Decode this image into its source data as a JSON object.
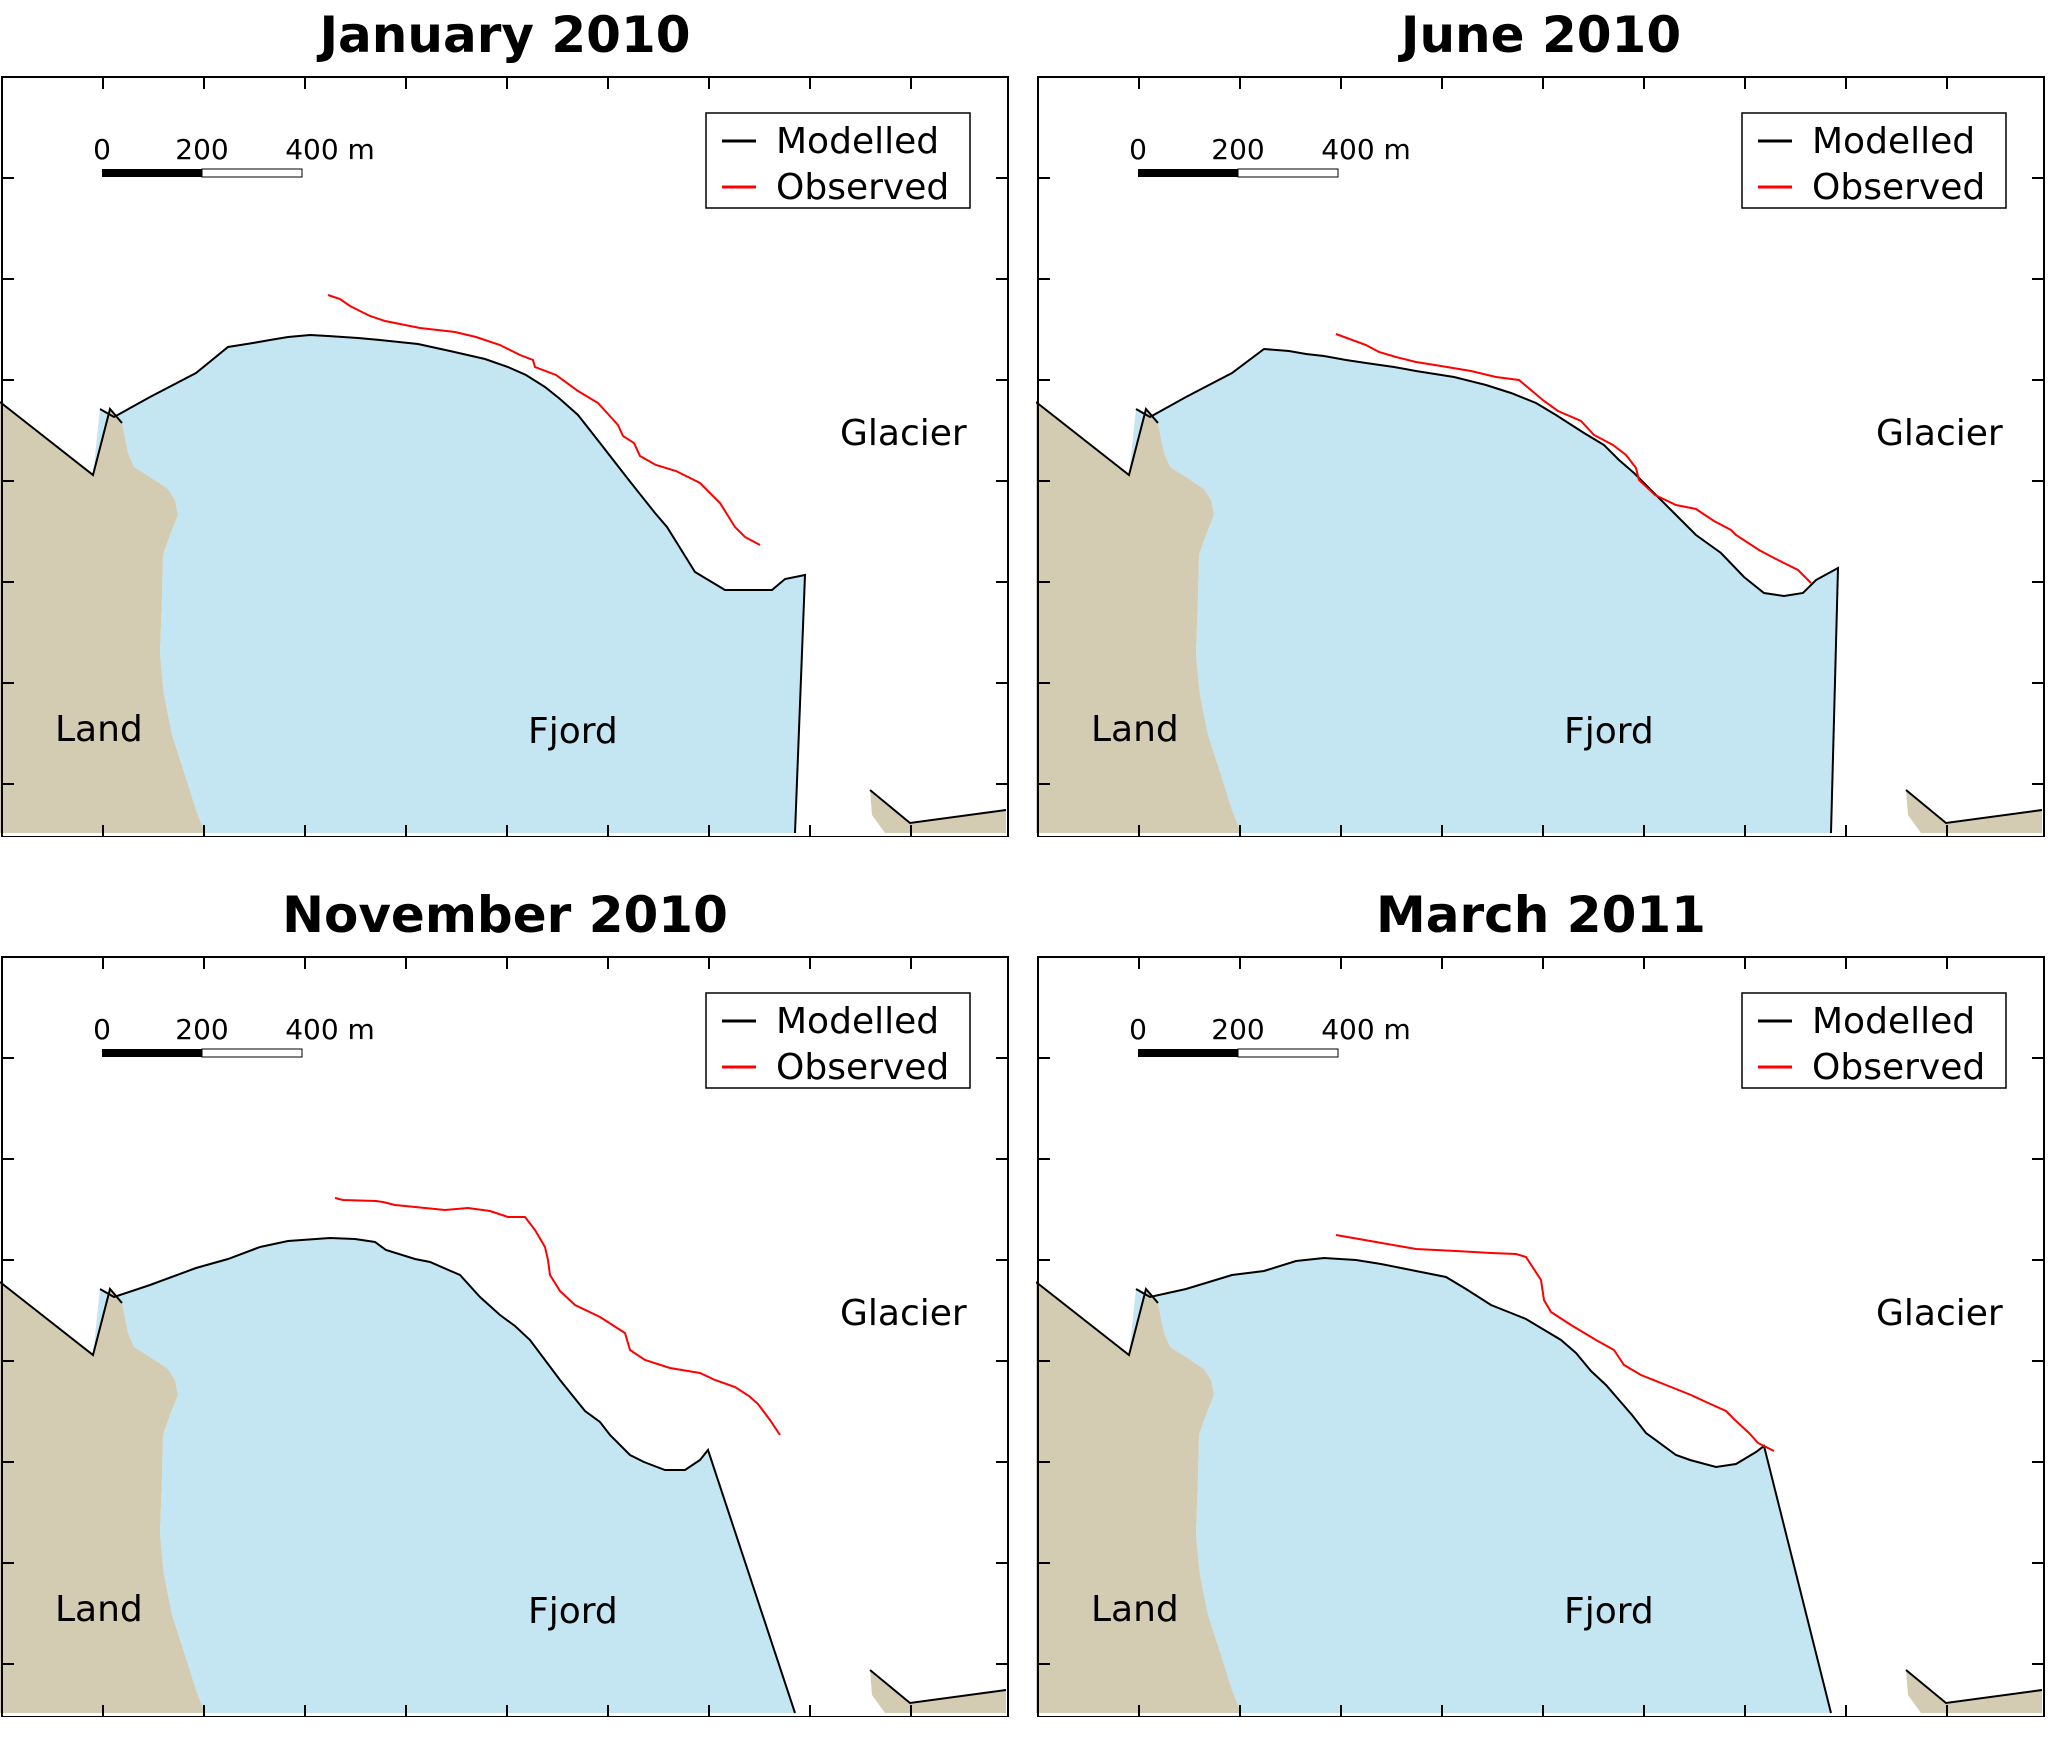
{
  "colors": {
    "land": "#d3ccb3",
    "fjord": "#c3e6f2",
    "modelled": "#000000",
    "observed": "#ff0000",
    "frame": "#000000"
  },
  "legend": {
    "modelled": "Modelled",
    "observed": "Observed"
  },
  "scalebar": {
    "tick0": "0",
    "tick1": "200",
    "tick2": "400 m"
  },
  "labels": {
    "land": "Land",
    "fjord": "Fjord",
    "glacier": "Glacier"
  },
  "panels": [
    {
      "title": "January 2010",
      "modelled": [
        [
          100,
          334
        ],
        [
          114,
          342
        ],
        [
          150,
          322
        ],
        [
          196,
          298
        ],
        [
          228,
          272
        ],
        [
          253,
          268
        ],
        [
          270,
          265
        ],
        [
          288,
          262
        ],
        [
          310,
          260
        ],
        [
          328,
          261
        ],
        [
          358,
          263
        ],
        [
          380,
          265
        ],
        [
          418,
          269
        ],
        [
          450,
          276
        ],
        [
          485,
          284
        ],
        [
          508,
          292
        ],
        [
          526,
          300
        ],
        [
          545,
          312
        ],
        [
          560,
          324
        ],
        [
          578,
          340
        ],
        [
          600,
          368
        ],
        [
          628,
          404
        ],
        [
          655,
          438
        ],
        [
          667,
          452
        ],
        [
          695,
          497
        ],
        [
          725,
          515
        ],
        [
          772,
          515
        ],
        [
          785,
          504
        ],
        [
          805,
          500
        ],
        [
          795,
          758
        ]
      ],
      "observed": [
        [
          328,
          220
        ],
        [
          340,
          224
        ],
        [
          350,
          231
        ],
        [
          370,
          241
        ],
        [
          385,
          246
        ],
        [
          420,
          253
        ],
        [
          455,
          257
        ],
        [
          476,
          262
        ],
        [
          500,
          270
        ],
        [
          520,
          280
        ],
        [
          533,
          285
        ],
        [
          535,
          292
        ],
        [
          556,
          300
        ],
        [
          578,
          316
        ],
        [
          598,
          328
        ],
        [
          618,
          350
        ],
        [
          623,
          361
        ],
        [
          634,
          368
        ],
        [
          640,
          381
        ],
        [
          656,
          390
        ],
        [
          676,
          396
        ],
        [
          700,
          408
        ],
        [
          720,
          428
        ],
        [
          735,
          452
        ],
        [
          745,
          462
        ],
        [
          760,
          470
        ]
      ]
    },
    {
      "title": "June 2010",
      "modelled": [
        [
          100,
          334
        ],
        [
          114,
          342
        ],
        [
          150,
          322
        ],
        [
          196,
          298
        ],
        [
          228,
          274
        ],
        [
          253,
          276
        ],
        [
          270,
          279
        ],
        [
          288,
          281
        ],
        [
          310,
          285
        ],
        [
          330,
          288
        ],
        [
          358,
          292
        ],
        [
          380,
          296
        ],
        [
          418,
          302
        ],
        [
          450,
          310
        ],
        [
          475,
          318
        ],
        [
          500,
          328
        ],
        [
          520,
          340
        ],
        [
          548,
          358
        ],
        [
          568,
          370
        ],
        [
          583,
          385
        ],
        [
          598,
          398
        ],
        [
          620,
          420
        ],
        [
          640,
          440
        ],
        [
          660,
          460
        ],
        [
          685,
          478
        ],
        [
          708,
          502
        ],
        [
          728,
          518
        ],
        [
          748,
          521
        ],
        [
          767,
          518
        ],
        [
          780,
          505
        ],
        [
          802,
          493
        ],
        [
          795,
          758
        ]
      ],
      "observed": [
        [
          300,
          259
        ],
        [
          330,
          270
        ],
        [
          343,
          277
        ],
        [
          360,
          282
        ],
        [
          380,
          287
        ],
        [
          405,
          291
        ],
        [
          435,
          296
        ],
        [
          460,
          302
        ],
        [
          483,
          305
        ],
        [
          508,
          326
        ],
        [
          522,
          336
        ],
        [
          545,
          346
        ],
        [
          558,
          360
        ],
        [
          577,
          370
        ],
        [
          590,
          380
        ],
        [
          600,
          393
        ],
        [
          603,
          405
        ],
        [
          619,
          420
        ],
        [
          640,
          430
        ],
        [
          660,
          434
        ],
        [
          678,
          446
        ],
        [
          695,
          455
        ],
        [
          700,
          460
        ],
        [
          723,
          475
        ],
        [
          740,
          484
        ],
        [
          762,
          495
        ],
        [
          775,
          508
        ]
      ]
    },
    {
      "title": "November 2010",
      "modelled": [
        [
          100,
          334
        ],
        [
          114,
          342
        ],
        [
          150,
          330
        ],
        [
          196,
          313
        ],
        [
          228,
          304
        ],
        [
          260,
          292
        ],
        [
          288,
          286
        ],
        [
          330,
          283
        ],
        [
          355,
          284
        ],
        [
          375,
          287
        ],
        [
          386,
          295
        ],
        [
          415,
          304
        ],
        [
          430,
          307
        ],
        [
          460,
          320
        ],
        [
          480,
          342
        ],
        [
          500,
          360
        ],
        [
          515,
          371
        ],
        [
          530,
          385
        ],
        [
          545,
          405
        ],
        [
          560,
          425
        ],
        [
          585,
          456
        ],
        [
          600,
          467
        ],
        [
          610,
          480
        ],
        [
          630,
          500
        ],
        [
          644,
          507
        ],
        [
          665,
          515
        ],
        [
          685,
          515
        ],
        [
          700,
          505
        ],
        [
          708,
          495
        ],
        [
          795,
          758
        ]
      ],
      "observed": [
        [
          335,
          243
        ],
        [
          343,
          245
        ],
        [
          376,
          246
        ],
        [
          383,
          247
        ],
        [
          395,
          250
        ],
        [
          425,
          253
        ],
        [
          445,
          255
        ],
        [
          468,
          253
        ],
        [
          490,
          256
        ],
        [
          508,
          262
        ],
        [
          525,
          262
        ],
        [
          535,
          275
        ],
        [
          545,
          292
        ],
        [
          548,
          305
        ],
        [
          550,
          320
        ],
        [
          560,
          336
        ],
        [
          575,
          350
        ],
        [
          600,
          362
        ],
        [
          625,
          378
        ],
        [
          630,
          395
        ],
        [
          645,
          405
        ],
        [
          670,
          413
        ],
        [
          700,
          418
        ],
        [
          715,
          425
        ],
        [
          735,
          432
        ],
        [
          749,
          441
        ],
        [
          758,
          449
        ],
        [
          770,
          465
        ],
        [
          780,
          480
        ]
      ]
    },
    {
      "title": "March 2011",
      "modelled": [
        [
          100,
          334
        ],
        [
          114,
          342
        ],
        [
          150,
          334
        ],
        [
          196,
          320
        ],
        [
          228,
          316
        ],
        [
          260,
          306
        ],
        [
          288,
          303
        ],
        [
          320,
          305
        ],
        [
          345,
          309
        ],
        [
          380,
          316
        ],
        [
          410,
          322
        ],
        [
          430,
          334
        ],
        [
          455,
          350
        ],
        [
          470,
          356
        ],
        [
          490,
          364
        ],
        [
          510,
          376
        ],
        [
          525,
          385
        ],
        [
          540,
          398
        ],
        [
          555,
          416
        ],
        [
          570,
          430
        ],
        [
          596,
          460
        ],
        [
          610,
          478
        ],
        [
          640,
          500
        ],
        [
          654,
          505
        ],
        [
          680,
          512
        ],
        [
          700,
          509
        ],
        [
          720,
          497
        ],
        [
          728,
          491
        ],
        [
          795,
          758
        ]
      ],
      "observed": [
        [
          300,
          280
        ],
        [
          340,
          287
        ],
        [
          380,
          294
        ],
        [
          420,
          296
        ],
        [
          455,
          298
        ],
        [
          480,
          299
        ],
        [
          490,
          302
        ],
        [
          505,
          325
        ],
        [
          508,
          345
        ],
        [
          515,
          357
        ],
        [
          535,
          370
        ],
        [
          560,
          385
        ],
        [
          578,
          395
        ],
        [
          588,
          410
        ],
        [
          605,
          420
        ],
        [
          630,
          430
        ],
        [
          655,
          440
        ],
        [
          670,
          447
        ],
        [
          690,
          456
        ],
        [
          700,
          466
        ],
        [
          713,
          478
        ],
        [
          722,
          488
        ],
        [
          738,
          496
        ]
      ]
    }
  ]
}
